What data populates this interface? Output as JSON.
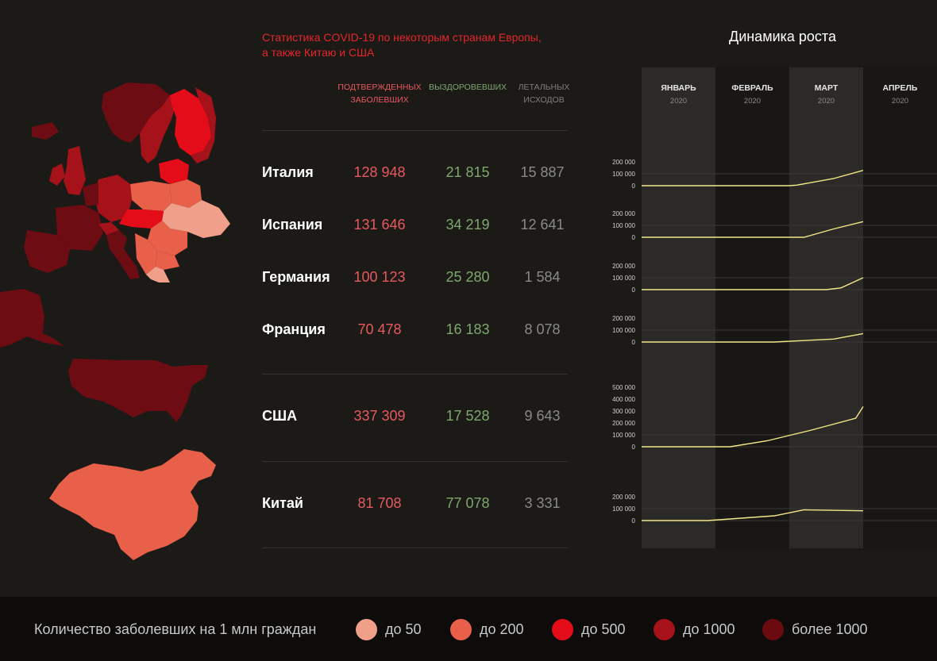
{
  "header": {
    "title_line1": "Статистика COVID-19 по некоторым странам Европы,",
    "title_line2": "а также Китаю и США",
    "chart_title": "Динамика роста"
  },
  "columns": {
    "confirmed_line1": "ПОДТВЕРЖДЕННЫХ",
    "confirmed_line2": "ЗАБОЛЕВШИХ",
    "recovered": "ВЫЗДОРОВЕВШИХ",
    "deaths_line1": "ЛЕТАЛЬНЫХ",
    "deaths_line2": "ИСХОДОВ"
  },
  "rows": [
    {
      "country": "Италия",
      "confirmed": "128 948",
      "recovered": "21 815",
      "deaths": "15 887"
    },
    {
      "country": "Испания",
      "confirmed": "131 646",
      "recovered": "34 219",
      "deaths": "12 641"
    },
    {
      "country": "Германия",
      "confirmed": "100 123",
      "recovered": "25 280",
      "deaths": "1 584"
    },
    {
      "country": "Франция",
      "confirmed": "70 478",
      "recovered": "16 183",
      "deaths": "8 078"
    },
    {
      "country": "США",
      "confirmed": "337 309",
      "recovered": "17 528",
      "deaths": "9 643"
    },
    {
      "country": "Китай",
      "confirmed": "81 708",
      "recovered": "77 078",
      "deaths": "3 331"
    }
  ],
  "legend": {
    "title": "Количество заболевших на 1 млн граждан",
    "items": [
      {
        "label": "до 50",
        "color": "#f0a08a"
      },
      {
        "label": "до 200",
        "color": "#e8604a"
      },
      {
        "label": "до 500",
        "color": "#e30c18"
      },
      {
        "label": "до 1000",
        "color": "#a5121a"
      },
      {
        "label": "более 1000",
        "color": "#6b0b10"
      }
    ]
  },
  "colors": {
    "accent_red": "#e3262b",
    "confirmed": "#e6595e",
    "recovered": "#7ea76e",
    "deaths": "#8a8a8a",
    "trend_line": "#f2e889"
  },
  "chart_data": {
    "type": "line",
    "title": "Динамика роста",
    "months": [
      {
        "name": "ЯНВАРЬ",
        "year": "2020"
      },
      {
        "name": "ФЕВРАЛЬ",
        "year": "2020"
      },
      {
        "name": "МАРТ",
        "year": "2020"
      },
      {
        "name": "АПРЕЛЬ",
        "year": "2020"
      }
    ],
    "x_domain": [
      0,
      3.5
    ],
    "series": [
      {
        "name": "Италия",
        "ylim": [
          0,
          200000
        ],
        "ticks": [
          "0",
          "100 000",
          "200 000"
        ],
        "points": [
          [
            0,
            0
          ],
          [
            2,
            0
          ],
          [
            2.1,
            5000
          ],
          [
            2.6,
            60000
          ],
          [
            3,
            128948
          ]
        ]
      },
      {
        "name": "Испания",
        "ylim": [
          0,
          200000
        ],
        "ticks": [
          "0",
          "100 000",
          "200 000"
        ],
        "points": [
          [
            0,
            0
          ],
          [
            2.2,
            0
          ],
          [
            2.6,
            70000
          ],
          [
            3,
            131646
          ]
        ]
      },
      {
        "name": "Германия",
        "ylim": [
          0,
          200000
        ],
        "ticks": [
          "0",
          "100 000",
          "200 000"
        ],
        "points": [
          [
            0,
            0
          ],
          [
            2.5,
            0
          ],
          [
            2.7,
            15000
          ],
          [
            3,
            100123
          ]
        ]
      },
      {
        "name": "Франция",
        "ylim": [
          0,
          200000
        ],
        "ticks": [
          "0",
          "100 000",
          "200 000"
        ],
        "points": [
          [
            0,
            0
          ],
          [
            1.8,
            0
          ],
          [
            2.6,
            25000
          ],
          [
            3,
            70478
          ]
        ]
      },
      {
        "name": "США",
        "ylim": [
          0,
          500000
        ],
        "ticks": [
          "0",
          "100 000",
          "200 000",
          "300 000",
          "400 000",
          "500 000"
        ],
        "points": [
          [
            0,
            0
          ],
          [
            1.2,
            0
          ],
          [
            1.7,
            50000
          ],
          [
            2.3,
            140000
          ],
          [
            2.9,
            240000
          ],
          [
            3,
            337309
          ]
        ]
      },
      {
        "name": "Китай",
        "ylim": [
          0,
          200000
        ],
        "ticks": [
          "0",
          "100 000",
          "200 000"
        ],
        "points": [
          [
            0,
            0
          ],
          [
            0.9,
            0
          ],
          [
            1.8,
            40000
          ],
          [
            2.2,
            90000
          ],
          [
            3,
            81708
          ]
        ]
      }
    ]
  }
}
